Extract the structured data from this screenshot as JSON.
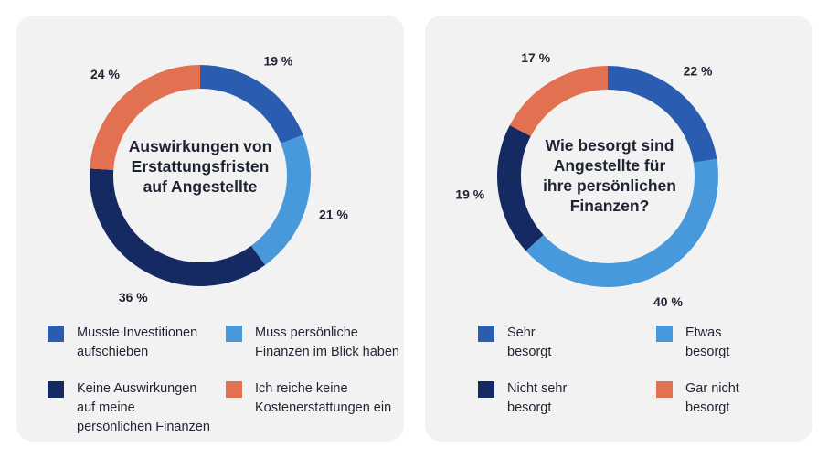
{
  "chart_data": [
    {
      "type": "pie",
      "donut": true,
      "title": "Auswirkungen von Erstattungsfristen auf Angestellte",
      "title_lines": [
        "Auswirkungen von",
        "Erstattungsfristen",
        "auf Angestellte"
      ],
      "slices": [
        {
          "label": "Musste Investitionen aufschieben",
          "legend_lines": [
            "Musste Investitionen",
            "aufschieben"
          ],
          "value": 19,
          "display": "19 %",
          "color": "#2a5db0"
        },
        {
          "label": "Muss persönliche Finanzen im Blick haben",
          "legend_lines": [
            "Muss persönliche",
            "Finanzen im Blick haben"
          ],
          "value": 21,
          "display": "21 %",
          "color": "#4799dc"
        },
        {
          "label": "Keine Auswirkungen auf meine persönlichen Finanzen",
          "legend_lines": [
            "Keine Auswirkungen",
            "auf meine",
            "persönlichen Finanzen"
          ],
          "value": 36,
          "display": "36 %",
          "color": "#152a62"
        },
        {
          "label": "Ich reiche keine Kostenerstattungen ein",
          "legend_lines": [
            "Ich reiche keine",
            "Kostenerstattungen ein"
          ],
          "value": 24,
          "display": "24 %",
          "color": "#e27151"
        }
      ]
    },
    {
      "type": "pie",
      "donut": true,
      "title": "Wie besorgt sind Angestellte für ihre persönlichen Finanzen?",
      "title_lines": [
        "Wie besorgt sind",
        "Angestellte für",
        "ihre persönlichen",
        "Finanzen?"
      ],
      "slices": [
        {
          "label": "Sehr besorgt",
          "legend_lines": [
            "Sehr",
            "besorgt"
          ],
          "value": 22,
          "display": "22 %",
          "color": "#2a5db0"
        },
        {
          "label": "Etwas besorgt",
          "legend_lines": [
            "Etwas",
            "besorgt"
          ],
          "value": 40,
          "display": "40 %",
          "color": "#4799dc"
        },
        {
          "label": "Nicht sehr besorgt",
          "legend_lines": [
            "Nicht sehr",
            "besorgt"
          ],
          "value": 19,
          "display": "19 %",
          "color": "#152a62"
        },
        {
          "label": "Gar nicht besorgt",
          "legend_lines": [
            "Gar nicht",
            "besorgt"
          ],
          "value": 17,
          "display": "17 %",
          "color": "#e27151"
        }
      ]
    }
  ]
}
